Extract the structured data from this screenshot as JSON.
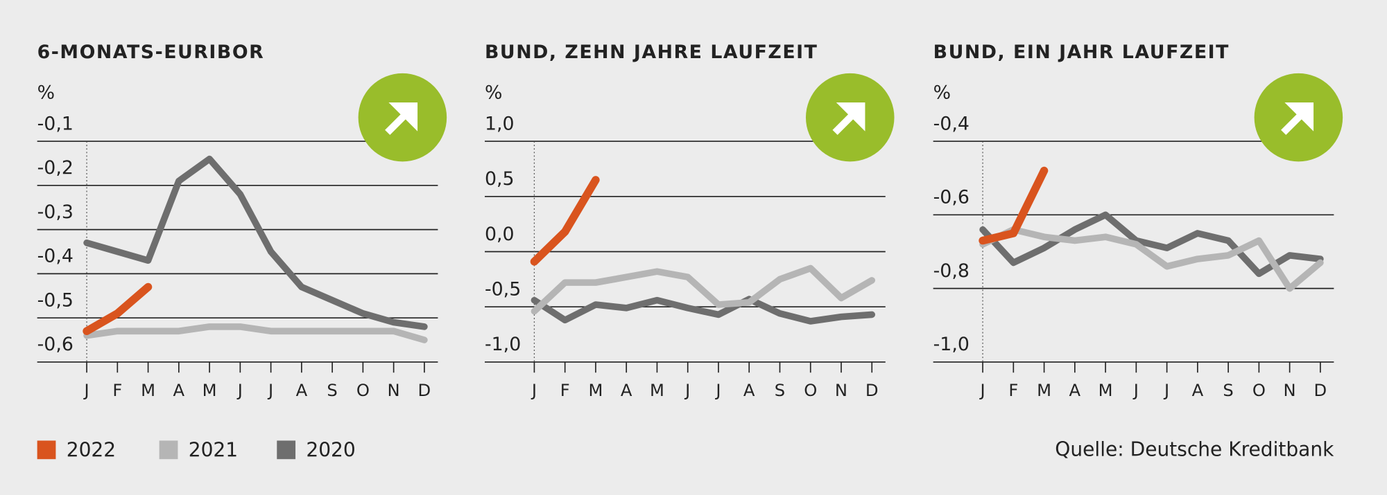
{
  "chart_data": [
    {
      "type": "line",
      "title": "6-MONATS-EURIBOR",
      "y_label": "%",
      "categories": [
        "J",
        "F",
        "M",
        "A",
        "M",
        "J",
        "J",
        "A",
        "S",
        "O",
        "N",
        "D"
      ],
      "ylim": [
        -0.6,
        -0.1
      ],
      "yticks": [
        {
          "value": -0.1,
          "label": "-0,1"
        },
        {
          "value": -0.2,
          "label": "-0,2"
        },
        {
          "value": -0.3,
          "label": "-0,3"
        },
        {
          "value": -0.4,
          "label": "-0,4"
        },
        {
          "value": -0.5,
          "label": "-0,5"
        },
        {
          "value": -0.6,
          "label": "-0,6"
        }
      ],
      "grid": true,
      "series": [
        {
          "name": "2022",
          "color": "#d9541e",
          "values": [
            -0.53,
            -0.49,
            -0.43,
            null,
            null,
            null,
            null,
            null,
            null,
            null,
            null,
            null
          ]
        },
        {
          "name": "2021",
          "color": "#b5b5b5",
          "values": [
            -0.54,
            -0.53,
            -0.53,
            -0.53,
            -0.52,
            -0.52,
            -0.53,
            -0.53,
            -0.53,
            -0.53,
            -0.53,
            -0.55
          ]
        },
        {
          "name": "2020",
          "color": "#6e6e6e",
          "values": [
            -0.33,
            -0.35,
            -0.37,
            -0.19,
            -0.14,
            -0.22,
            -0.35,
            -0.43,
            -0.46,
            -0.49,
            -0.51,
            -0.52
          ]
        }
      ]
    },
    {
      "type": "line",
      "title": "BUND, ZEHN JAHRE LAUFZEIT",
      "y_label": "%",
      "categories": [
        "J",
        "F",
        "M",
        "A",
        "M",
        "J",
        "J",
        "A",
        "S",
        "O",
        "N",
        "D"
      ],
      "ylim": [
        -1.0,
        1.0
      ],
      "yticks": [
        {
          "value": 1.0,
          "label": "1,0"
        },
        {
          "value": 0.5,
          "label": "0,5"
        },
        {
          "value": 0.0,
          "label": "0,0"
        },
        {
          "value": -0.5,
          "label": "-0,5"
        },
        {
          "value": -1.0,
          "label": "-1,0"
        }
      ],
      "grid": true,
      "series": [
        {
          "name": "2022",
          "color": "#d9541e",
          "values": [
            -0.09,
            0.18,
            0.65,
            null,
            null,
            null,
            null,
            null,
            null,
            null,
            null,
            null
          ]
        },
        {
          "name": "2021",
          "color": "#b5b5b5",
          "values": [
            -0.54,
            -0.28,
            -0.28,
            -0.23,
            -0.18,
            -0.23,
            -0.48,
            -0.46,
            -0.25,
            -0.15,
            -0.42,
            -0.26
          ]
        },
        {
          "name": "2020",
          "color": "#6e6e6e",
          "values": [
            -0.44,
            -0.62,
            -0.48,
            -0.51,
            -0.44,
            -0.51,
            -0.57,
            -0.43,
            -0.56,
            -0.63,
            -0.59,
            -0.57
          ]
        }
      ]
    },
    {
      "type": "line",
      "title": "BUND, EIN JAHR LAUFZEIT",
      "y_label": "%",
      "categories": [
        "J",
        "F",
        "M",
        "A",
        "M",
        "J",
        "J",
        "A",
        "S",
        "O",
        "N",
        "D"
      ],
      "ylim": [
        -1.0,
        -0.4
      ],
      "yticks": [
        {
          "value": -0.4,
          "label": "-0,4"
        },
        {
          "value": -0.6,
          "label": "-0,6"
        },
        {
          "value": -0.8,
          "label": "-0,8"
        },
        {
          "value": -1.0,
          "label": "-1,0"
        }
      ],
      "grid": true,
      "series": [
        {
          "name": "2022",
          "color": "#d9541e",
          "values": [
            -0.67,
            -0.65,
            -0.48,
            null,
            null,
            null,
            null,
            null,
            null,
            null,
            null,
            null
          ]
        },
        {
          "name": "2021",
          "color": "#b5b5b5",
          "values": [
            -0.68,
            -0.64,
            -0.66,
            -0.67,
            -0.66,
            -0.68,
            -0.74,
            -0.72,
            -0.71,
            -0.67,
            -0.8,
            -0.73
          ]
        },
        {
          "name": "2020",
          "color": "#6e6e6e",
          "values": [
            -0.64,
            -0.73,
            -0.69,
            -0.64,
            -0.6,
            -0.67,
            -0.69,
            -0.65,
            -0.67,
            -0.76,
            -0.71,
            -0.72
          ]
        }
      ]
    }
  ],
  "source": "Quelle: Deutsche Kreditbank"
}
